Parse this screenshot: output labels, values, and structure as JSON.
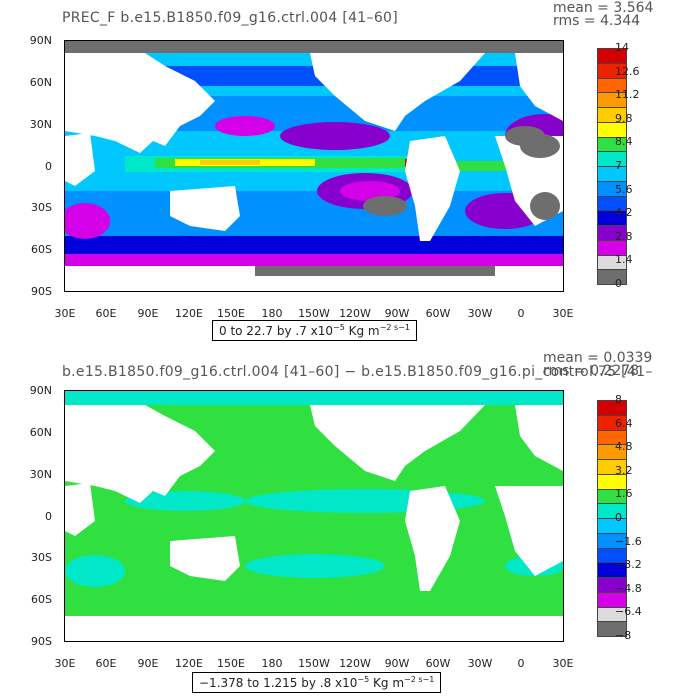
{
  "panels": [
    {
      "title": "PREC_F b.e15.B1850.f09_g16.ctrl.004 [41–60]",
      "mean_label": "mean = 3.564",
      "rms_label": "rms = 4.344",
      "range_label": "0 to 22.7 by .7 x10",
      "range_exp": "−5",
      "range_units": " Kg m",
      "range_units_exp": "−2 s−1",
      "colorbar": {
        "labels": [
          "14",
          "12.6",
          "11.2",
          "9.8",
          "8.4",
          "7",
          "5.6",
          "4.2",
          "2.8",
          "1.4",
          "0"
        ],
        "colors": [
          "#d40000",
          "#ee2200",
          "#ff6600",
          "#ff9a00",
          "#ffcc00",
          "#ffff00",
          "#30e040",
          "#00e8c8",
          "#00c8ff",
          "#0090ff",
          "#0050ff",
          "#0000dd",
          "#8800cc",
          "#d400e8",
          "#dcdcdc",
          "#6e6e6e"
        ]
      }
    },
    {
      "title": "b.e15.B1850.f09_g16.ctrl.004 [41–60] − b.e15.B1850.f09_g16.pi_control.75 [41–",
      "mean_label": "mean = 0.0339",
      "rms_label": "rms = 0.2278",
      "range_label": "−1.378 to 1.215 by .8 x10",
      "range_exp": "−5",
      "range_units": " Kg m",
      "range_units_exp": "−2 s−1",
      "colorbar": {
        "labels": [
          "8",
          "6.4",
          "4.8",
          "3.2",
          "1.6",
          "0",
          "−1.6",
          "−3.2",
          "−4.8",
          "−6.4",
          "−8"
        ],
        "colors": [
          "#d40000",
          "#ee2200",
          "#ff6600",
          "#ff9a00",
          "#ffcc00",
          "#ffff00",
          "#30e040",
          "#00e8c8",
          "#00c8ff",
          "#0090ff",
          "#0050ff",
          "#0000dd",
          "#8800cc",
          "#d400e8",
          "#dcdcdc",
          "#6e6e6e"
        ]
      }
    }
  ],
  "axes": {
    "y_ticks": [
      "90N",
      "60N",
      "30N",
      "0",
      "30S",
      "60S",
      "90S"
    ],
    "x_ticks": [
      "30E",
      "60E",
      "90E",
      "120E",
      "150E",
      "180",
      "150W",
      "120W",
      "90W",
      "60W",
      "30W",
      "0",
      "30E"
    ]
  },
  "chart_data": [
    {
      "type": "heatmap",
      "title": "PREC_F b.e15.B1850.f09_g16.ctrl.004 [41–60]",
      "ylabel": "",
      "xlabel": "",
      "x_range": [
        "30E",
        "30E"
      ],
      "y_range": [
        "90S",
        "90N"
      ],
      "colorbar_range": [
        0,
        14
      ],
      "mean": 3.564,
      "rms": 4.344
    },
    {
      "type": "heatmap",
      "title": "b.e15.B1850.f09_g16.ctrl.004 [41–60] − b.e15.B1850.f09_g16.pi_control.75 [41–",
      "ylabel": "",
      "xlabel": "",
      "x_range": [
        "30E",
        "30E"
      ],
      "y_range": [
        "90S",
        "90N"
      ],
      "colorbar_range": [
        -8,
        8
      ],
      "mean": 0.0339,
      "rms": 0.2278
    }
  ]
}
